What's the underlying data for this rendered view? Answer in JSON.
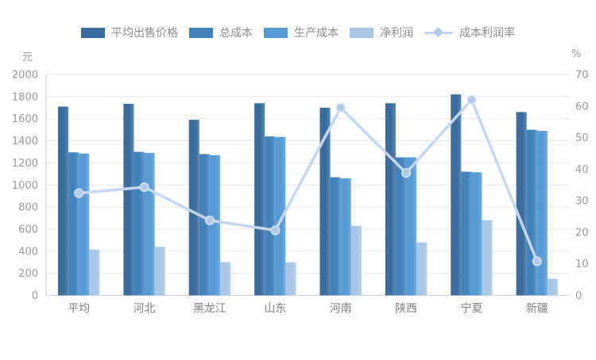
{
  "chart_data": {
    "type": "bar",
    "subtype": "grouped-bars-with-line",
    "title": "",
    "categories": [
      "平均",
      "河北",
      "黑龙江",
      "山东",
      "河南",
      "陕西",
      "宁夏",
      "新疆"
    ],
    "bar_series": [
      {
        "name": "平均出售价格",
        "color": "#3a6d9e",
        "values": [
          1710,
          1735,
          1590,
          1740,
          1700,
          1740,
          1820,
          1660
        ]
      },
      {
        "name": "总成本",
        "color": "#4283bd",
        "values": [
          1295,
          1300,
          1280,
          1440,
          1070,
          1250,
          1120,
          1500
        ]
      },
      {
        "name": "生产成本",
        "color": "#569bd5",
        "values": [
          1285,
          1290,
          1270,
          1435,
          1060,
          1250,
          1115,
          1490
        ]
      },
      {
        "name": "净利润",
        "color": "#a9c6e5",
        "values": [
          415,
          440,
          300,
          300,
          630,
          480,
          680,
          150
        ]
      }
    ],
    "line_series": {
      "name": "成本利润率",
      "axis": "right",
      "color": "#c5d7ee",
      "marker_color": "#b3c9e8",
      "values": [
        32.4,
        34.3,
        23.8,
        20.6,
        59.5,
        38.8,
        62,
        10.8
      ]
    },
    "left_axis": {
      "unit": "元",
      "min": 0,
      "max": 2000,
      "step": 200
    },
    "right_axis": {
      "unit": "%",
      "min": 0,
      "max": 70,
      "step": 10
    },
    "grid": true,
    "legend_position": "top"
  }
}
